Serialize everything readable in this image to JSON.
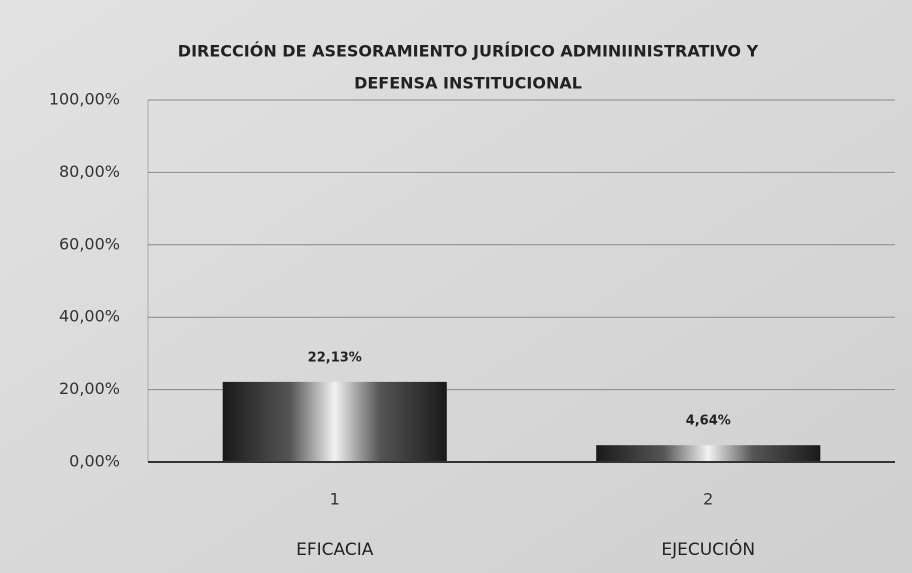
{
  "chart_data": {
    "type": "bar",
    "title": [
      "DIRECCIÓN DE ASESORAMIENTO JURÍDICO ADMINIINISTRATIVO Y",
      "DEFENSA INSTITUCIONAL"
    ],
    "categories": [
      "1",
      "2"
    ],
    "category_names": [
      "EFICACIA",
      "EJECUCIÓN"
    ],
    "values": [
      22.13,
      4.64
    ],
    "value_labels": [
      "22,13%",
      "4,64%"
    ],
    "ylim": [
      0,
      100
    ],
    "yticks": [
      {
        "value": 0,
        "label": "0,00%"
      },
      {
        "value": 20,
        "label": "20,00%"
      },
      {
        "value": 40,
        "label": "40,00%"
      },
      {
        "value": 60,
        "label": "60,00%"
      },
      {
        "value": 80,
        "label": "80,00%"
      },
      {
        "value": 100,
        "label": "100,00%"
      }
    ],
    "grid": true
  }
}
